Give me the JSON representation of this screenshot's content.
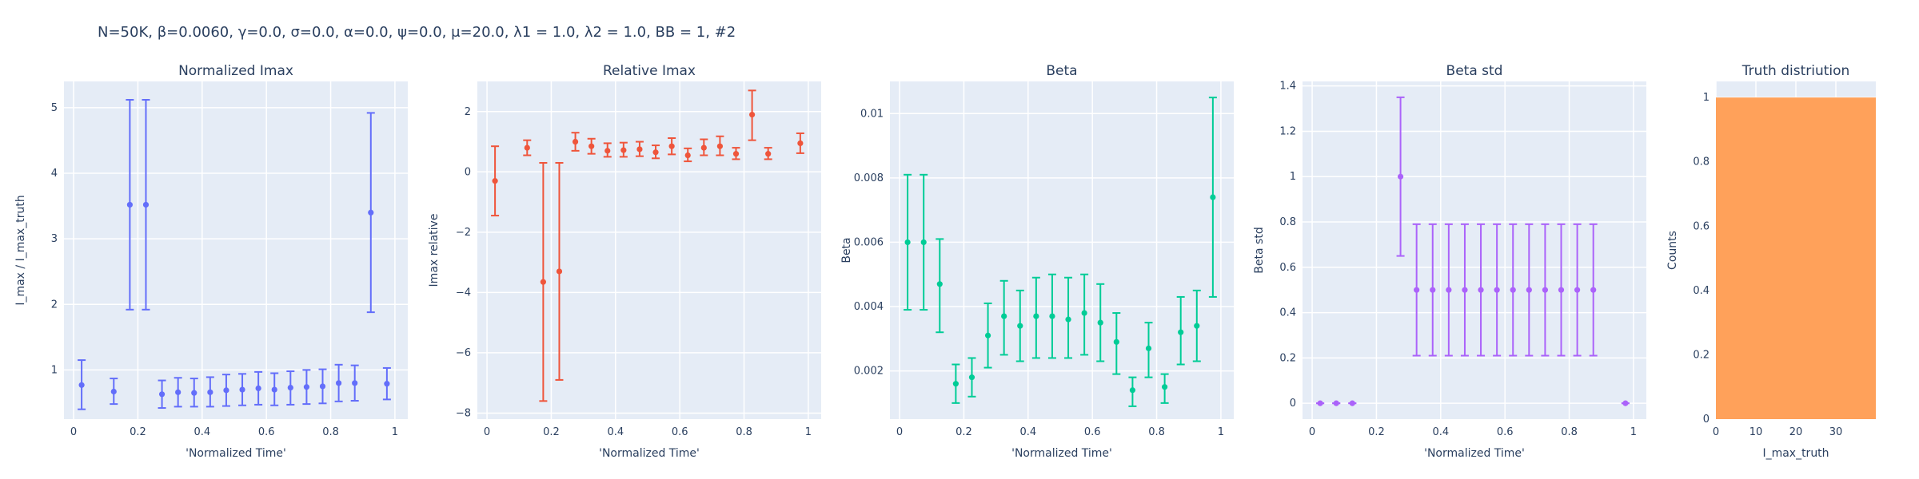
{
  "figure_title": "N=50K, β=0.0060, γ=0.0, σ=0.0,  α=0.0, ψ=0.0, μ=20.0, λ1 = 1.0, λ2 = 1.0, BB = 1, #2",
  "chart_data": [
    {
      "type": "scatter",
      "title": "Normalized Imax",
      "xlabel": "'Normalized Time'",
      "ylabel": "I_max / I_max_truth",
      "color": "#636efa",
      "xlim": [
        -0.03,
        1.04
      ],
      "ylim": [
        0.25,
        5.4
      ],
      "xticks": [
        0,
        0.2,
        0.4,
        0.6,
        0.8,
        1
      ],
      "xtick_labels": [
        "0",
        "0.2",
        "0.4",
        "0.6",
        "0.8",
        "1"
      ],
      "yticks": [
        1,
        2,
        3,
        4,
        5
      ],
      "ytick_labels": [
        "1",
        "2",
        "3",
        "4",
        "5"
      ],
      "points": [
        {
          "x": 0.025,
          "y": 0.77,
          "lo": 0.4,
          "hi": 1.15
        },
        {
          "x": 0.125,
          "y": 0.67,
          "lo": 0.48,
          "hi": 0.87
        },
        {
          "x": 0.175,
          "y": 3.52,
          "lo": 1.92,
          "hi": 5.12
        },
        {
          "x": 0.225,
          "y": 3.52,
          "lo": 1.92,
          "hi": 5.12
        },
        {
          "x": 0.275,
          "y": 0.63,
          "lo": 0.42,
          "hi": 0.84
        },
        {
          "x": 0.325,
          "y": 0.66,
          "lo": 0.44,
          "hi": 0.88
        },
        {
          "x": 0.375,
          "y": 0.65,
          "lo": 0.44,
          "hi": 0.87
        },
        {
          "x": 0.425,
          "y": 0.66,
          "lo": 0.44,
          "hi": 0.89
        },
        {
          "x": 0.475,
          "y": 0.69,
          "lo": 0.45,
          "hi": 0.93
        },
        {
          "x": 0.525,
          "y": 0.7,
          "lo": 0.46,
          "hi": 0.94
        },
        {
          "x": 0.575,
          "y": 0.72,
          "lo": 0.47,
          "hi": 0.97
        },
        {
          "x": 0.625,
          "y": 0.7,
          "lo": 0.46,
          "hi": 0.95
        },
        {
          "x": 0.675,
          "y": 0.73,
          "lo": 0.47,
          "hi": 0.98
        },
        {
          "x": 0.725,
          "y": 0.74,
          "lo": 0.48,
          "hi": 1.0
        },
        {
          "x": 0.775,
          "y": 0.75,
          "lo": 0.49,
          "hi": 1.01
        },
        {
          "x": 0.825,
          "y": 0.8,
          "lo": 0.52,
          "hi": 1.08
        },
        {
          "x": 0.875,
          "y": 0.8,
          "lo": 0.53,
          "hi": 1.07
        },
        {
          "x": 0.925,
          "y": 3.4,
          "lo": 1.88,
          "hi": 4.92
        },
        {
          "x": 0.975,
          "y": 0.79,
          "lo": 0.55,
          "hi": 1.03
        }
      ]
    },
    {
      "type": "scatter",
      "title": "Relative Imax",
      "xlabel": "'Normalized Time'",
      "ylabel": "Imax relative",
      "color": "#ef553b",
      "xlim": [
        -0.03,
        1.04
      ],
      "ylim": [
        -8.2,
        3.0
      ],
      "xticks": [
        0,
        0.2,
        0.4,
        0.6,
        0.8,
        1
      ],
      "xtick_labels": [
        "0",
        "0.2",
        "0.4",
        "0.6",
        "0.8",
        "1"
      ],
      "yticks": [
        -8,
        -6,
        -4,
        -2,
        0,
        2
      ],
      "ytick_labels": [
        "−8",
        "−6",
        "−4",
        "−2",
        "0",
        "2"
      ],
      "points": [
        {
          "x": 0.025,
          "y": -0.3,
          "lo": -1.45,
          "hi": 0.85
        },
        {
          "x": 0.125,
          "y": 0.8,
          "lo": 0.55,
          "hi": 1.05
        },
        {
          "x": 0.175,
          "y": -3.65,
          "lo": -7.6,
          "hi": 0.3
        },
        {
          "x": 0.225,
          "y": -3.3,
          "lo": -6.9,
          "hi": 0.3
        },
        {
          "x": 0.275,
          "y": 1.0,
          "lo": 0.7,
          "hi": 1.3
        },
        {
          "x": 0.325,
          "y": 0.85,
          "lo": 0.6,
          "hi": 1.1
        },
        {
          "x": 0.375,
          "y": 0.7,
          "lo": 0.5,
          "hi": 0.95
        },
        {
          "x": 0.425,
          "y": 0.72,
          "lo": 0.5,
          "hi": 0.97
        },
        {
          "x": 0.475,
          "y": 0.75,
          "lo": 0.52,
          "hi": 1.0
        },
        {
          "x": 0.525,
          "y": 0.65,
          "lo": 0.45,
          "hi": 0.88
        },
        {
          "x": 0.575,
          "y": 0.85,
          "lo": 0.58,
          "hi": 1.12
        },
        {
          "x": 0.625,
          "y": 0.55,
          "lo": 0.35,
          "hi": 0.78
        },
        {
          "x": 0.675,
          "y": 0.8,
          "lo": 0.55,
          "hi": 1.08
        },
        {
          "x": 0.725,
          "y": 0.85,
          "lo": 0.55,
          "hi": 1.18
        },
        {
          "x": 0.775,
          "y": 0.6,
          "lo": 0.42,
          "hi": 0.8
        },
        {
          "x": 0.825,
          "y": 1.9,
          "lo": 1.05,
          "hi": 2.7
        },
        {
          "x": 0.875,
          "y": 0.6,
          "lo": 0.42,
          "hi": 0.8
        },
        {
          "x": 0.975,
          "y": 0.95,
          "lo": 0.62,
          "hi": 1.28
        }
      ]
    },
    {
      "type": "scatter",
      "title": "Beta",
      "xlabel": "'Normalized Time'",
      "ylabel": "Beta",
      "color": "#00cc96",
      "xlim": [
        -0.03,
        1.04
      ],
      "ylim": [
        0.0005,
        0.011
      ],
      "xticks": [
        0,
        0.2,
        0.4,
        0.6,
        0.8,
        1
      ],
      "xtick_labels": [
        "0",
        "0.2",
        "0.4",
        "0.6",
        "0.8",
        "1"
      ],
      "yticks": [
        0.002,
        0.004,
        0.006,
        0.008,
        0.01
      ],
      "ytick_labels": [
        "0.002",
        "0.004",
        "0.006",
        "0.008",
        "0.01"
      ],
      "points": [
        {
          "x": 0.025,
          "y": 0.006,
          "lo": 0.0039,
          "hi": 0.0081
        },
        {
          "x": 0.075,
          "y": 0.006,
          "lo": 0.0039,
          "hi": 0.0081
        },
        {
          "x": 0.125,
          "y": 0.0047,
          "lo": 0.0032,
          "hi": 0.0061
        },
        {
          "x": 0.175,
          "y": 0.0016,
          "lo": 0.001,
          "hi": 0.0022
        },
        {
          "x": 0.225,
          "y": 0.0018,
          "lo": 0.0012,
          "hi": 0.0024
        },
        {
          "x": 0.275,
          "y": 0.0031,
          "lo": 0.0021,
          "hi": 0.0041
        },
        {
          "x": 0.325,
          "y": 0.0037,
          "lo": 0.0025,
          "hi": 0.0048
        },
        {
          "x": 0.375,
          "y": 0.0034,
          "lo": 0.0023,
          "hi": 0.0045
        },
        {
          "x": 0.425,
          "y": 0.0037,
          "lo": 0.0024,
          "hi": 0.0049
        },
        {
          "x": 0.475,
          "y": 0.0037,
          "lo": 0.0024,
          "hi": 0.005
        },
        {
          "x": 0.525,
          "y": 0.0036,
          "lo": 0.0024,
          "hi": 0.0049
        },
        {
          "x": 0.575,
          "y": 0.0038,
          "lo": 0.0025,
          "hi": 0.005
        },
        {
          "x": 0.625,
          "y": 0.0035,
          "lo": 0.0023,
          "hi": 0.0047
        },
        {
          "x": 0.675,
          "y": 0.0029,
          "lo": 0.0019,
          "hi": 0.0038
        },
        {
          "x": 0.725,
          "y": 0.0014,
          "lo": 0.0009,
          "hi": 0.0018
        },
        {
          "x": 0.775,
          "y": 0.0027,
          "lo": 0.0018,
          "hi": 0.0035
        },
        {
          "x": 0.825,
          "y": 0.0015,
          "lo": 0.001,
          "hi": 0.0019
        },
        {
          "x": 0.875,
          "y": 0.0032,
          "lo": 0.0022,
          "hi": 0.0043
        },
        {
          "x": 0.925,
          "y": 0.0034,
          "lo": 0.0023,
          "hi": 0.0045
        },
        {
          "x": 0.975,
          "y": 0.0074,
          "lo": 0.0043,
          "hi": 0.0105
        }
      ]
    },
    {
      "type": "scatter",
      "title": "Beta std",
      "xlabel": "'Normalized Time'",
      "ylabel": "Beta std",
      "color": "#ab63fa",
      "xlim": [
        -0.03,
        1.04
      ],
      "ylim": [
        -0.07,
        1.42
      ],
      "xticks": [
        0,
        0.2,
        0.4,
        0.6,
        0.8,
        1
      ],
      "xtick_labels": [
        "0",
        "0.2",
        "0.4",
        "0.6",
        "0.8",
        "1"
      ],
      "yticks": [
        0,
        0.2,
        0.4,
        0.6,
        0.8,
        1,
        1.2,
        1.4
      ],
      "ytick_labels": [
        "0",
        "0.2",
        "0.4",
        "0.6",
        "0.8",
        "1",
        "1.2",
        "1.4"
      ],
      "points": [
        {
          "x": 0.025,
          "y": 0.0,
          "lo": 0.0,
          "hi": 0.0
        },
        {
          "x": 0.075,
          "y": 0.0,
          "lo": 0.0,
          "hi": 0.0
        },
        {
          "x": 0.125,
          "y": 0.0,
          "lo": 0.0,
          "hi": 0.0
        },
        {
          "x": 0.275,
          "y": 1.0,
          "lo": 0.65,
          "hi": 1.35
        },
        {
          "x": 0.325,
          "y": 0.5,
          "lo": 0.21,
          "hi": 0.79
        },
        {
          "x": 0.375,
          "y": 0.5,
          "lo": 0.21,
          "hi": 0.79
        },
        {
          "x": 0.425,
          "y": 0.5,
          "lo": 0.21,
          "hi": 0.79
        },
        {
          "x": 0.475,
          "y": 0.5,
          "lo": 0.21,
          "hi": 0.79
        },
        {
          "x": 0.525,
          "y": 0.5,
          "lo": 0.21,
          "hi": 0.79
        },
        {
          "x": 0.575,
          "y": 0.5,
          "lo": 0.21,
          "hi": 0.79
        },
        {
          "x": 0.625,
          "y": 0.5,
          "lo": 0.21,
          "hi": 0.79
        },
        {
          "x": 0.675,
          "y": 0.5,
          "lo": 0.21,
          "hi": 0.79
        },
        {
          "x": 0.725,
          "y": 0.5,
          "lo": 0.21,
          "hi": 0.79
        },
        {
          "x": 0.775,
          "y": 0.5,
          "lo": 0.21,
          "hi": 0.79
        },
        {
          "x": 0.825,
          "y": 0.5,
          "lo": 0.21,
          "hi": 0.79
        },
        {
          "x": 0.875,
          "y": 0.5,
          "lo": 0.21,
          "hi": 0.79
        },
        {
          "x": 0.975,
          "y": 0.0,
          "lo": 0.0,
          "hi": 0.0
        }
      ]
    },
    {
      "type": "bar",
      "title": "Truth distriution",
      "xlabel": "I_max_truth",
      "ylabel": "Counts",
      "color": "#ffa15a",
      "xlim": [
        0,
        40
      ],
      "ylim": [
        0,
        1.05
      ],
      "xticks": [
        0,
        10,
        20,
        30
      ],
      "xtick_labels": [
        "0",
        "10",
        "20",
        "30"
      ],
      "yticks": [
        0,
        0.2,
        0.4,
        0.6,
        0.8,
        1
      ],
      "ytick_labels": [
        "0",
        "0.2",
        "0.4",
        "0.6",
        "0.8",
        "1"
      ],
      "bins": [
        {
          "x0": 0,
          "x1": 40,
          "count": 1
        }
      ]
    }
  ]
}
